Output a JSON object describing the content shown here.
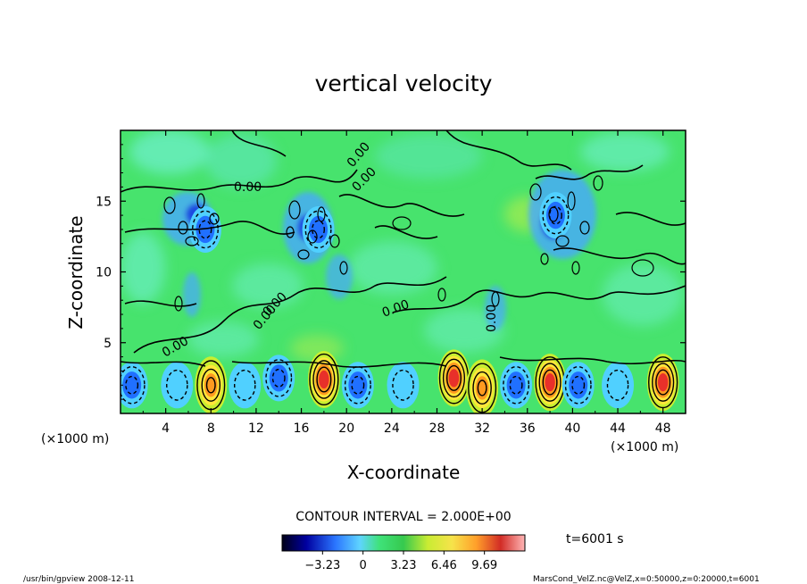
{
  "chart_data": {
    "type": "heatmap",
    "title": "vertical velocity",
    "xlabel": "X-coordinate",
    "ylabel": "Z-coordinate",
    "x_unit_left": "(×1000 m)",
    "x_unit_right": "(×1000 m)",
    "xlim": [
      0,
      50
    ],
    "ylim": [
      0,
      20
    ],
    "x_ticks": [
      4,
      8,
      12,
      16,
      20,
      24,
      28,
      32,
      36,
      40,
      44,
      48
    ],
    "y_ticks": [
      5,
      10,
      15
    ],
    "contour_interval_text": "CONTOUR INTERVAL = 2.000E+00",
    "contour_labels": [
      "0.00",
      "0.00",
      "0.00",
      "0.00",
      "0.00",
      "0.00",
      "0.00",
      "0.00"
    ],
    "colorbar_ticks": [
      "−3.23",
      "0",
      "3.23",
      "6.46",
      "9.69"
    ],
    "colorbar_range": [
      -6.46,
      12.92
    ],
    "time_label": "t=6001 s",
    "cells": [
      {
        "x": 1.0,
        "z": 2.0,
        "w": -3.5
      },
      {
        "x": 5.0,
        "z": 2.0,
        "w": -1.5
      },
      {
        "x": 8.0,
        "z": 2.0,
        "w": 7.0
      },
      {
        "x": 11.0,
        "z": 2.0,
        "w": -2.0
      },
      {
        "x": 14.0,
        "z": 2.5,
        "w": -3.0
      },
      {
        "x": 18.0,
        "z": 2.4,
        "w": 9.5
      },
      {
        "x": 21.0,
        "z": 2.0,
        "w": -3.0
      },
      {
        "x": 25.0,
        "z": 2.0,
        "w": -2.0
      },
      {
        "x": 29.5,
        "z": 2.5,
        "w": 8.0
      },
      {
        "x": 32.0,
        "z": 1.8,
        "w": 7.0
      },
      {
        "x": 35.0,
        "z": 2.0,
        "w": -3.5
      },
      {
        "x": 38.0,
        "z": 2.2,
        "w": 8.5
      },
      {
        "x": 40.5,
        "z": 2.0,
        "w": -3.0
      },
      {
        "x": 44.0,
        "z": 2.0,
        "w": -2.0
      },
      {
        "x": 48.0,
        "z": 2.2,
        "w": 9.5
      },
      {
        "x": 7.5,
        "z": 13.0,
        "w": -2.5
      },
      {
        "x": 17.5,
        "z": 13.0,
        "w": -2.5
      },
      {
        "x": 38.5,
        "z": 14.0,
        "w": -2.5
      }
    ]
  },
  "colors": {
    "neutral": "#47e36d",
    "colormap": [
      "#000020",
      "#0000b0",
      "#2070ff",
      "#50d0ff",
      "#3fe27a",
      "#c8ee30",
      "#ffe63a",
      "#ff9a20",
      "#e8302a",
      "#ffb0b0"
    ]
  },
  "footer": {
    "left": "/usr/bin/gpview   2008-12-11",
    "right": "MarsCond_VelZ.nc@VelZ,x=0:50000,z=0:20000,t=6001"
  }
}
